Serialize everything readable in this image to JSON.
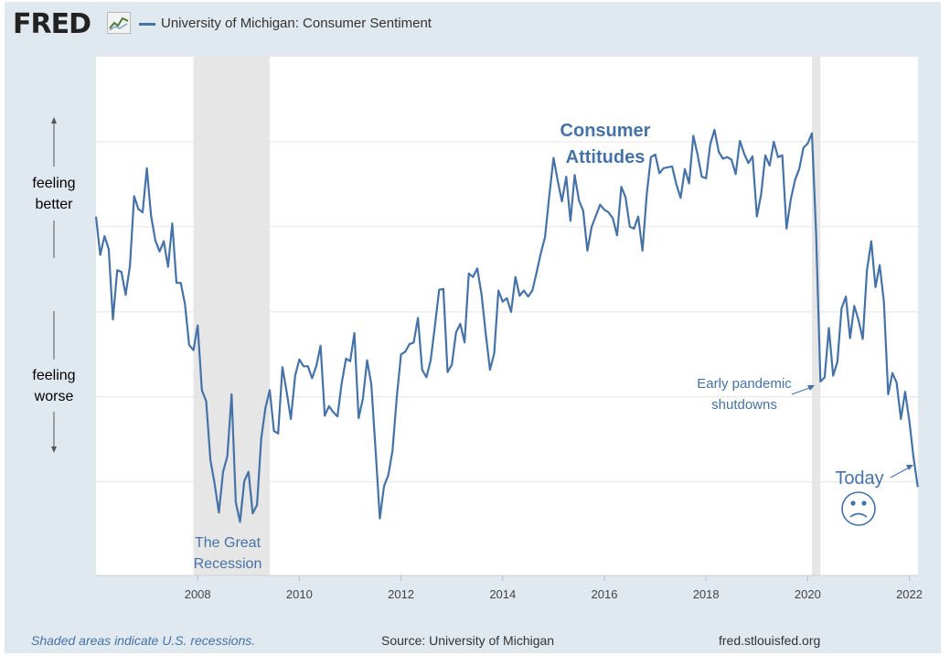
{
  "header": {
    "logo_text": "FRED",
    "series_title": "University of Michigan: Consumer Sentiment"
  },
  "side_labels": {
    "better": [
      "feeling",
      "better"
    ],
    "worse": [
      "feeling",
      "worse"
    ]
  },
  "annotations": {
    "attitudes": [
      "Consumer",
      "Attitudes"
    ],
    "recession": [
      "The Great",
      "Recession"
    ],
    "pandemic": [
      "Early pandemic",
      "shutdowns"
    ],
    "today": "Today",
    "today_icon": "sad-face-icon"
  },
  "footer": {
    "note": "Shaded areas indicate U.S. recessions.",
    "source": "Source: University of Michigan",
    "url": "fred.stlouisfed.org"
  },
  "colors": {
    "line": "#4572a7",
    "recession_shade": "#e6e6e6",
    "frame": "#e1e9f0",
    "grid": "#e4e4e4",
    "annotation": "#4572a7"
  },
  "chart_data": {
    "type": "line",
    "title": "",
    "xlabel": "",
    "ylabel": "",
    "x_ticks": [
      "2008",
      "2010",
      "2012",
      "2014",
      "2016",
      "2018",
      "2020",
      "2022"
    ],
    "xlim": [
      2006.0,
      2022.17
    ],
    "ylim": [
      49,
      110
    ],
    "grid": "horizontal",
    "recessions": [
      [
        2007.917,
        2009.417
      ],
      [
        2020.083,
        2020.25
      ]
    ],
    "series": [
      {
        "name": "University of Michigan: Consumer Sentiment",
        "start": 2006.0,
        "step": 0.0833333,
        "values": [
          91.2,
          86.7,
          88.9,
          87.4,
          79.1,
          84.9,
          84.7,
          82.0,
          85.4,
          93.6,
          92.1,
          91.7,
          96.9,
          91.3,
          88.4,
          87.1,
          88.3,
          85.3,
          90.4,
          83.4,
          83.4,
          80.9,
          76.1,
          75.5,
          78.4,
          70.8,
          69.5,
          62.6,
          59.8,
          56.4,
          61.2,
          63.0,
          70.3,
          57.6,
          55.3,
          60.1,
          61.2,
          56.3,
          57.3,
          65.1,
          68.7,
          70.8,
          66.0,
          65.7,
          73.5,
          70.6,
          67.4,
          72.5,
          74.4,
          73.6,
          73.6,
          72.2,
          73.6,
          76.0,
          67.8,
          68.9,
          68.2,
          67.7,
          71.6,
          74.5,
          74.2,
          77.5,
          67.5,
          69.8,
          74.3,
          71.5,
          63.7,
          55.7,
          59.5,
          60.8,
          63.7,
          69.9,
          75.0,
          75.3,
          76.2,
          76.4,
          79.3,
          73.2,
          72.3,
          74.3,
          78.3,
          82.6,
          82.7,
          72.9,
          73.8,
          77.6,
          78.6,
          76.4,
          84.5,
          84.1,
          85.1,
          82.1,
          77.5,
          73.2,
          75.1,
          82.5,
          81.2,
          81.6,
          80.0,
          84.1,
          81.9,
          82.5,
          81.8,
          82.5,
          84.6,
          86.9,
          88.8,
          93.6,
          98.1,
          95.4,
          93.0,
          95.9,
          90.7,
          96.1,
          93.1,
          91.9,
          87.2,
          90.0,
          91.3,
          92.6,
          92.0,
          91.7,
          91.0,
          89.0,
          94.7,
          93.5,
          90.0,
          89.8,
          91.2,
          87.2,
          93.8,
          98.2,
          98.5,
          96.3,
          96.9,
          97.0,
          97.1,
          95.0,
          93.4,
          96.8,
          95.1,
          100.7,
          98.5,
          95.9,
          95.7,
          99.7,
          101.4,
          98.8,
          98.0,
          98.2,
          97.9,
          96.2,
          100.1,
          98.6,
          97.5,
          98.3,
          91.2,
          93.8,
          98.4,
          97.2,
          100.0,
          98.2,
          98.4,
          89.8,
          93.2,
          95.5,
          96.8,
          99.3,
          99.8,
          101.0,
          89.1,
          71.8,
          72.3,
          78.1,
          72.5,
          74.1,
          80.4,
          81.8,
          76.9,
          80.7,
          79.0,
          76.8,
          84.9,
          88.3,
          82.9,
          85.5,
          81.2,
          70.3,
          72.8,
          71.7,
          67.4,
          70.6,
          67.2,
          62.8,
          59.4
        ]
      }
    ]
  }
}
